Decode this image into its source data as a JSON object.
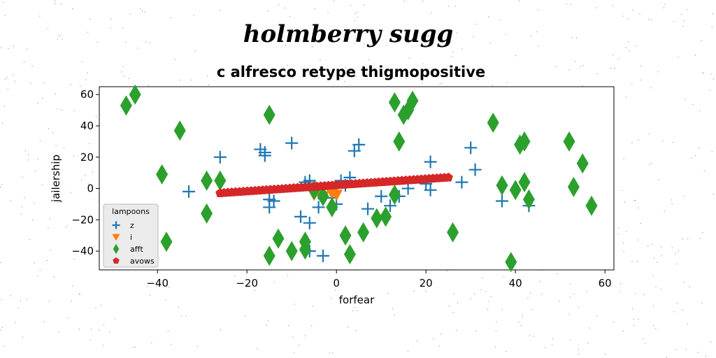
{
  "chart_data": {
    "type": "scatter",
    "suptitle": "holmberry sugg",
    "title": "c alfresco retype thigmopositive",
    "xlabel": "forfear",
    "ylabel": "jailership",
    "xlim": [
      -53,
      62
    ],
    "ylim": [
      -52,
      65
    ],
    "xticks": [
      -40,
      -20,
      0,
      20,
      40,
      60
    ],
    "yticks": [
      -40,
      -20,
      0,
      20,
      40,
      60
    ],
    "grid": false,
    "legend": {
      "title": "lampoons",
      "position": "lower-left"
    },
    "series": [
      {
        "name": "z",
        "marker": "plus",
        "color": "#1f77b4",
        "points": [
          [
            -33,
            -2
          ],
          [
            -26,
            20
          ],
          [
            -17,
            25
          ],
          [
            -16,
            21
          ],
          [
            -16,
            23
          ],
          [
            -15,
            -7
          ],
          [
            -15,
            -12
          ],
          [
            -14,
            -8
          ],
          [
            -10,
            29
          ],
          [
            -8,
            -18
          ],
          [
            -7,
            4
          ],
          [
            -6,
            5
          ],
          [
            -6,
            -40
          ],
          [
            -6,
            -22
          ],
          [
            -4,
            -12
          ],
          [
            -4,
            -3
          ],
          [
            -3,
            -43
          ],
          [
            -1,
            -6
          ],
          [
            0,
            -10
          ],
          [
            1,
            5
          ],
          [
            2,
            2
          ],
          [
            3,
            7
          ],
          [
            4,
            24
          ],
          [
            5,
            28
          ],
          [
            7,
            -13
          ],
          [
            10,
            -5
          ],
          [
            12,
            -11
          ],
          [
            14,
            -5
          ],
          [
            16,
            0
          ],
          [
            20,
            3
          ],
          [
            21,
            -1
          ],
          [
            21,
            17
          ],
          [
            28,
            4
          ],
          [
            30,
            26
          ],
          [
            31,
            12
          ],
          [
            37,
            -8
          ],
          [
            43,
            -11
          ]
        ]
      },
      {
        "name": "i",
        "marker": "triangle-down",
        "color": "#ff7f0e",
        "points": [
          [
            -5,
            -4
          ],
          [
            -4,
            -2
          ],
          [
            -3,
            -5
          ],
          [
            -1,
            -3
          ],
          [
            0,
            -4
          ]
        ]
      },
      {
        "name": "afft",
        "marker": "diamond",
        "color": "#2ca02c",
        "points": [
          [
            -47,
            53
          ],
          [
            -45,
            60
          ],
          [
            -39,
            9
          ],
          [
            -38,
            -34
          ],
          [
            -35,
            37
          ],
          [
            -29,
            5
          ],
          [
            -29,
            -16
          ],
          [
            -26,
            5
          ],
          [
            -15,
            47
          ],
          [
            -15,
            -43
          ],
          [
            -13,
            -32
          ],
          [
            -10,
            -40
          ],
          [
            -7,
            -34
          ],
          [
            -7,
            -39
          ],
          [
            -5,
            -1
          ],
          [
            -3,
            -5
          ],
          [
            -1,
            -12
          ],
          [
            2,
            -30
          ],
          [
            3,
            -42
          ],
          [
            6,
            -28
          ],
          [
            9,
            -19
          ],
          [
            11,
            -18
          ],
          [
            13,
            55
          ],
          [
            13,
            -4
          ],
          [
            14,
            30
          ],
          [
            15,
            47
          ],
          [
            16,
            50
          ],
          [
            17,
            56
          ],
          [
            26,
            -28
          ],
          [
            35,
            42
          ],
          [
            37,
            2
          ],
          [
            39,
            -47
          ],
          [
            40,
            -1
          ],
          [
            41,
            28
          ],
          [
            42,
            30
          ],
          [
            42,
            4
          ],
          [
            43,
            -7
          ],
          [
            52,
            30
          ],
          [
            53,
            1
          ],
          [
            55,
            16
          ],
          [
            57,
            -11
          ]
        ]
      },
      {
        "name": "avows",
        "marker": "pentagon",
        "color": "#d62728",
        "line": {
          "x_from": -26,
          "x_to": 25,
          "y_from": -3,
          "y_to": 7,
          "count": 60
        }
      }
    ]
  }
}
